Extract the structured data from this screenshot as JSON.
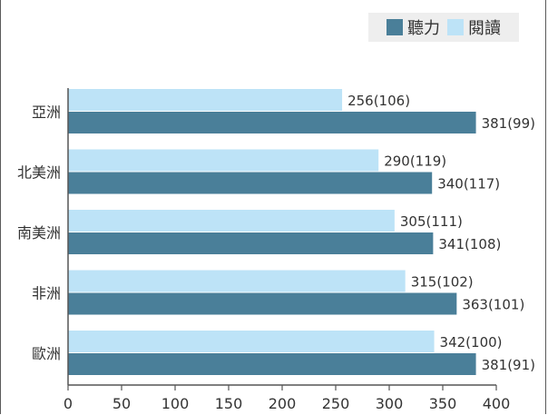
{
  "chart_data": {
    "type": "bar",
    "orientation": "horizontal",
    "categories": [
      "亞洲",
      "北美洲",
      "南美洲",
      "非洲",
      "歐洲"
    ],
    "series": [
      {
        "name": "閱讀",
        "color": "#bde3f7",
        "values": [
          256,
          290,
          305,
          315,
          342
        ],
        "labels": [
          "256(106)",
          "290(119)",
          "305(111)",
          "315(102)",
          "342(100)"
        ]
      },
      {
        "name": "聽力",
        "color": "#4a7f99",
        "values": [
          381,
          340,
          341,
          363,
          381
        ],
        "labels": [
          "381(99)",
          "340(117)",
          "341(108)",
          "363(101)",
          "381(91)"
        ]
      }
    ],
    "legend": [
      {
        "name": "聽力",
        "color": "#4a7f99"
      },
      {
        "name": "閱讀",
        "color": "#bde3f7"
      }
    ],
    "legend_position": "top-right",
    "xlim": [
      0,
      400
    ],
    "xticks": [
      0,
      50,
      100,
      150,
      200,
      250,
      300,
      350,
      400
    ],
    "tick_labels": [
      "0",
      "50",
      "100",
      "150",
      "200",
      "250",
      "300",
      "350",
      "400"
    ],
    "title": "",
    "xlabel": "",
    "ylabel": "",
    "grid": false
  }
}
